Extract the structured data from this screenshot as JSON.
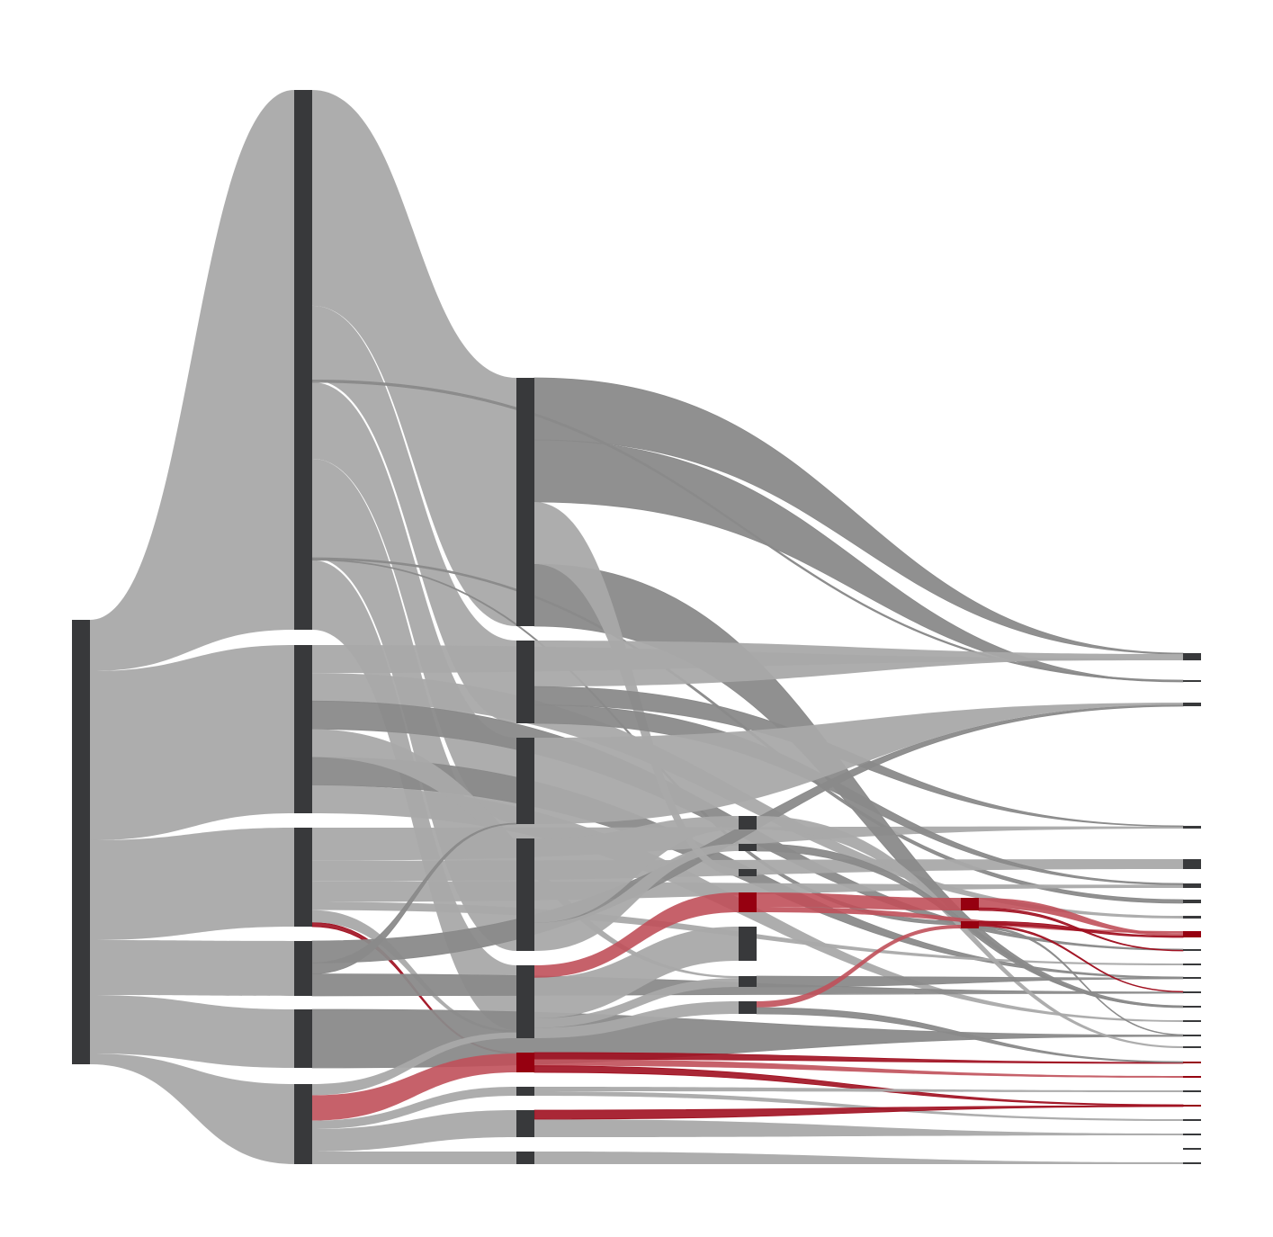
{
  "diagram": {
    "type": "sankey",
    "colors": {
      "node": "#38393b",
      "node_highlight": "#960010",
      "link": "#a9a9a9",
      "link_thin": "#8a8a8a",
      "link_highlight": "#c0505a",
      "link_highlight_thin": "#a01020"
    },
    "labels_visible": false,
    "nodes": [
      {
        "id": "n0",
        "column": 0,
        "highlight": false
      },
      {
        "id": "a1",
        "column": 1,
        "highlight": false
      },
      {
        "id": "a2",
        "column": 1,
        "highlight": false
      },
      {
        "id": "a3",
        "column": 1,
        "highlight": false
      },
      {
        "id": "a4",
        "column": 1,
        "highlight": false
      },
      {
        "id": "a5",
        "column": 1,
        "highlight": false
      },
      {
        "id": "a6",
        "column": 1,
        "highlight": false
      },
      {
        "id": "b1",
        "column": 2,
        "highlight": false
      },
      {
        "id": "b2",
        "column": 2,
        "highlight": false
      },
      {
        "id": "b3",
        "column": 2,
        "highlight": false
      },
      {
        "id": "b4",
        "column": 2,
        "highlight": false
      },
      {
        "id": "b5",
        "column": 2,
        "highlight": false
      },
      {
        "id": "b6",
        "column": 2,
        "highlight": true
      },
      {
        "id": "b7",
        "column": 2,
        "highlight": false
      },
      {
        "id": "b8",
        "column": 2,
        "highlight": false
      },
      {
        "id": "b9",
        "column": 2,
        "highlight": false
      },
      {
        "id": "c1",
        "column": 3,
        "highlight": false
      },
      {
        "id": "c2",
        "column": 3,
        "highlight": false
      },
      {
        "id": "c3",
        "column": 3,
        "highlight": false
      },
      {
        "id": "c4",
        "column": 3,
        "highlight": true
      },
      {
        "id": "c5",
        "column": 3,
        "highlight": false
      },
      {
        "id": "c6",
        "column": 3,
        "highlight": false
      },
      {
        "id": "c7",
        "column": 3,
        "highlight": false
      },
      {
        "id": "d1",
        "column": 4,
        "highlight": true
      },
      {
        "id": "d2",
        "column": 4,
        "highlight": true
      },
      {
        "id": "e1",
        "column": 5,
        "highlight": false
      },
      {
        "id": "e2",
        "column": 5,
        "highlight": false
      },
      {
        "id": "e3",
        "column": 5,
        "highlight": false
      },
      {
        "id": "e4",
        "column": 5,
        "highlight": false
      },
      {
        "id": "e5",
        "column": 5,
        "highlight": false
      },
      {
        "id": "e6",
        "column": 5,
        "highlight": false
      },
      {
        "id": "e7",
        "column": 5,
        "highlight": false
      },
      {
        "id": "e8",
        "column": 5,
        "highlight": false
      },
      {
        "id": "e9",
        "column": 5,
        "highlight": true
      },
      {
        "id": "e10",
        "column": 5,
        "highlight": false
      },
      {
        "id": "e11",
        "column": 5,
        "highlight": false
      },
      {
        "id": "e12",
        "column": 5,
        "highlight": false
      },
      {
        "id": "e13",
        "column": 5,
        "highlight": false
      },
      {
        "id": "e14",
        "column": 5,
        "highlight": false
      },
      {
        "id": "e15",
        "column": 5,
        "highlight": false
      },
      {
        "id": "e16",
        "column": 5,
        "highlight": false
      },
      {
        "id": "e17",
        "column": 5,
        "highlight": false
      },
      {
        "id": "e18",
        "column": 5,
        "highlight": true
      },
      {
        "id": "e19",
        "column": 5,
        "highlight": true
      },
      {
        "id": "e20",
        "column": 5,
        "highlight": false
      },
      {
        "id": "e21",
        "column": 5,
        "highlight": true
      },
      {
        "id": "e22",
        "column": 5,
        "highlight": false
      },
      {
        "id": "e23",
        "column": 5,
        "highlight": false
      },
      {
        "id": "e24",
        "column": 5,
        "highlight": false
      },
      {
        "id": "e25",
        "column": 5,
        "highlight": false
      }
    ],
    "links": [
      {
        "source": "n0",
        "target": "a1",
        "value": 57,
        "highlight": false
      },
      {
        "source": "n0",
        "target": "a2",
        "value": 188,
        "highlight": false
      },
      {
        "source": "n0",
        "target": "a3",
        "value": 111,
        "highlight": false
      },
      {
        "source": "n0",
        "target": "a4",
        "value": 61,
        "highlight": false
      },
      {
        "source": "n0",
        "target": "a5",
        "value": 65,
        "highlight": false
      },
      {
        "source": "n0",
        "target": "a6",
        "value": 12,
        "highlight": false
      },
      {
        "source": "a1",
        "target": "b1",
        "value": 279,
        "highlight": false
      },
      {
        "source": "a1",
        "target": "b2",
        "value": 96,
        "highlight": false
      },
      {
        "source": "a1",
        "target": "b3",
        "value": 99,
        "highlight": false
      },
      {
        "source": "a1",
        "target": "b4",
        "value": 128,
        "highlight": false
      },
      {
        "source": "a1",
        "target": "b5",
        "value": 90,
        "highlight": false
      },
      {
        "source": "a1",
        "target": "e2",
        "value": 3,
        "highlight": false
      },
      {
        "source": "a1",
        "target": "d2",
        "value": 1,
        "highlight": false
      },
      {
        "source": "a1",
        "target": "e7",
        "value": 2,
        "highlight": false
      },
      {
        "source": "a2",
        "target": "e1",
        "value": 2,
        "highlight": false
      },
      {
        "source": "a2",
        "target": "e8",
        "value": 2,
        "highlight": false
      },
      {
        "source": "a2",
        "target": "e10",
        "value": 2,
        "highlight": false
      },
      {
        "source": "a2",
        "target": "e12",
        "value": 2,
        "highlight": false
      },
      {
        "source": "a2",
        "target": "e15",
        "value": 2,
        "highlight": false
      },
      {
        "source": "a2",
        "target": "c6",
        "value": 2,
        "highlight": false
      },
      {
        "source": "a3",
        "target": "e4",
        "value": 8,
        "highlight": false
      },
      {
        "source": "a3",
        "target": "e6",
        "value": 5,
        "highlight": false
      },
      {
        "source": "a3",
        "target": "e5",
        "value": 5,
        "highlight": false
      },
      {
        "source": "a3",
        "target": "b6",
        "value": 1,
        "highlight": true
      },
      {
        "source": "a3",
        "target": "b5",
        "value": 3,
        "highlight": false
      },
      {
        "source": "a3",
        "target": "e11",
        "value": 2,
        "highlight": false
      },
      {
        "source": "a4",
        "target": "b3",
        "value": 1,
        "highlight": false
      },
      {
        "source": "a4",
        "target": "e13",
        "value": 2,
        "highlight": false
      },
      {
        "source": "a4",
        "target": "e3",
        "value": 2,
        "highlight": false
      },
      {
        "source": "a5",
        "target": "e16",
        "value": 2,
        "highlight": false
      },
      {
        "source": "a6",
        "target": "b5",
        "value": 8,
        "highlight": false
      },
      {
        "source": "a6",
        "target": "b6",
        "value": 18,
        "highlight": true
      },
      {
        "source": "a6",
        "target": "b7",
        "value": 6,
        "highlight": false
      },
      {
        "source": "a6",
        "target": "b8",
        "value": 16,
        "highlight": false
      },
      {
        "source": "a6",
        "target": "b9",
        "value": 9,
        "highlight": false
      },
      {
        "source": "b1",
        "target": "e1",
        "value": 1,
        "highlight": false
      },
      {
        "source": "b1",
        "target": "e2",
        "value": 1,
        "highlight": false
      },
      {
        "source": "b1",
        "target": "e14",
        "value": 1,
        "highlight": false
      },
      {
        "source": "b1",
        "target": "c3",
        "value": 1,
        "highlight": false
      },
      {
        "source": "b2",
        "target": "e1",
        "value": 5,
        "highlight": false
      },
      {
        "source": "b2",
        "target": "e4",
        "value": 2,
        "highlight": false
      },
      {
        "source": "b2",
        "target": "e6",
        "value": 2,
        "highlight": false
      },
      {
        "source": "b3",
        "target": "e3",
        "value": 3,
        "highlight": false
      },
      {
        "source": "b4",
        "target": "c1",
        "value": 6,
        "highlight": false
      },
      {
        "source": "b4",
        "target": "c2",
        "value": 2,
        "highlight": false
      },
      {
        "source": "b5",
        "target": "c4",
        "value": 12,
        "highlight": true
      },
      {
        "source": "b5",
        "target": "c5",
        "value": 39,
        "highlight": false
      },
      {
        "source": "b5",
        "target": "c6",
        "value": 9,
        "highlight": false
      },
      {
        "source": "b5",
        "target": "c7",
        "value": 10,
        "highlight": false
      },
      {
        "source": "b6",
        "target": "e18",
        "value": 1,
        "highlight": true
      },
      {
        "source": "b6",
        "target": "e19",
        "value": 1,
        "highlight": true
      },
      {
        "source": "b6",
        "target": "e21",
        "value": 1,
        "highlight": true
      },
      {
        "source": "b7",
        "target": "e20",
        "value": 2,
        "highlight": false
      },
      {
        "source": "b7",
        "target": "e22",
        "value": 2,
        "highlight": false
      },
      {
        "source": "b8",
        "target": "e23",
        "value": 2,
        "highlight": false
      },
      {
        "source": "b8",
        "target": "e21",
        "value": 1,
        "highlight": true
      },
      {
        "source": "b9",
        "target": "e25",
        "value": 2,
        "highlight": false
      },
      {
        "source": "c1",
        "target": "e17",
        "value": 2,
        "highlight": false
      },
      {
        "source": "c2",
        "target": "e14",
        "value": 1,
        "highlight": false
      },
      {
        "source": "c4",
        "target": "d1",
        "value": 8,
        "highlight": true
      },
      {
        "source": "c4",
        "target": "e9",
        "value": 3,
        "highlight": true
      },
      {
        "source": "c6",
        "target": "e12",
        "value": 1,
        "highlight": false
      },
      {
        "source": "c7",
        "target": "d2",
        "value": 1,
        "highlight": true
      },
      {
        "source": "c7",
        "target": "e18",
        "value": 1,
        "highlight": false
      },
      {
        "source": "d1",
        "target": "e9",
        "value": 4,
        "highlight": true
      },
      {
        "source": "d1",
        "target": "e10",
        "value": 1,
        "highlight": true
      },
      {
        "source": "d2",
        "target": "e9",
        "value": 2,
        "highlight": true
      },
      {
        "source": "d2",
        "target": "e13",
        "value": 1,
        "highlight": true
      },
      {
        "source": "d2",
        "target": "e16",
        "value": 1,
        "highlight": false
      }
    ]
  }
}
